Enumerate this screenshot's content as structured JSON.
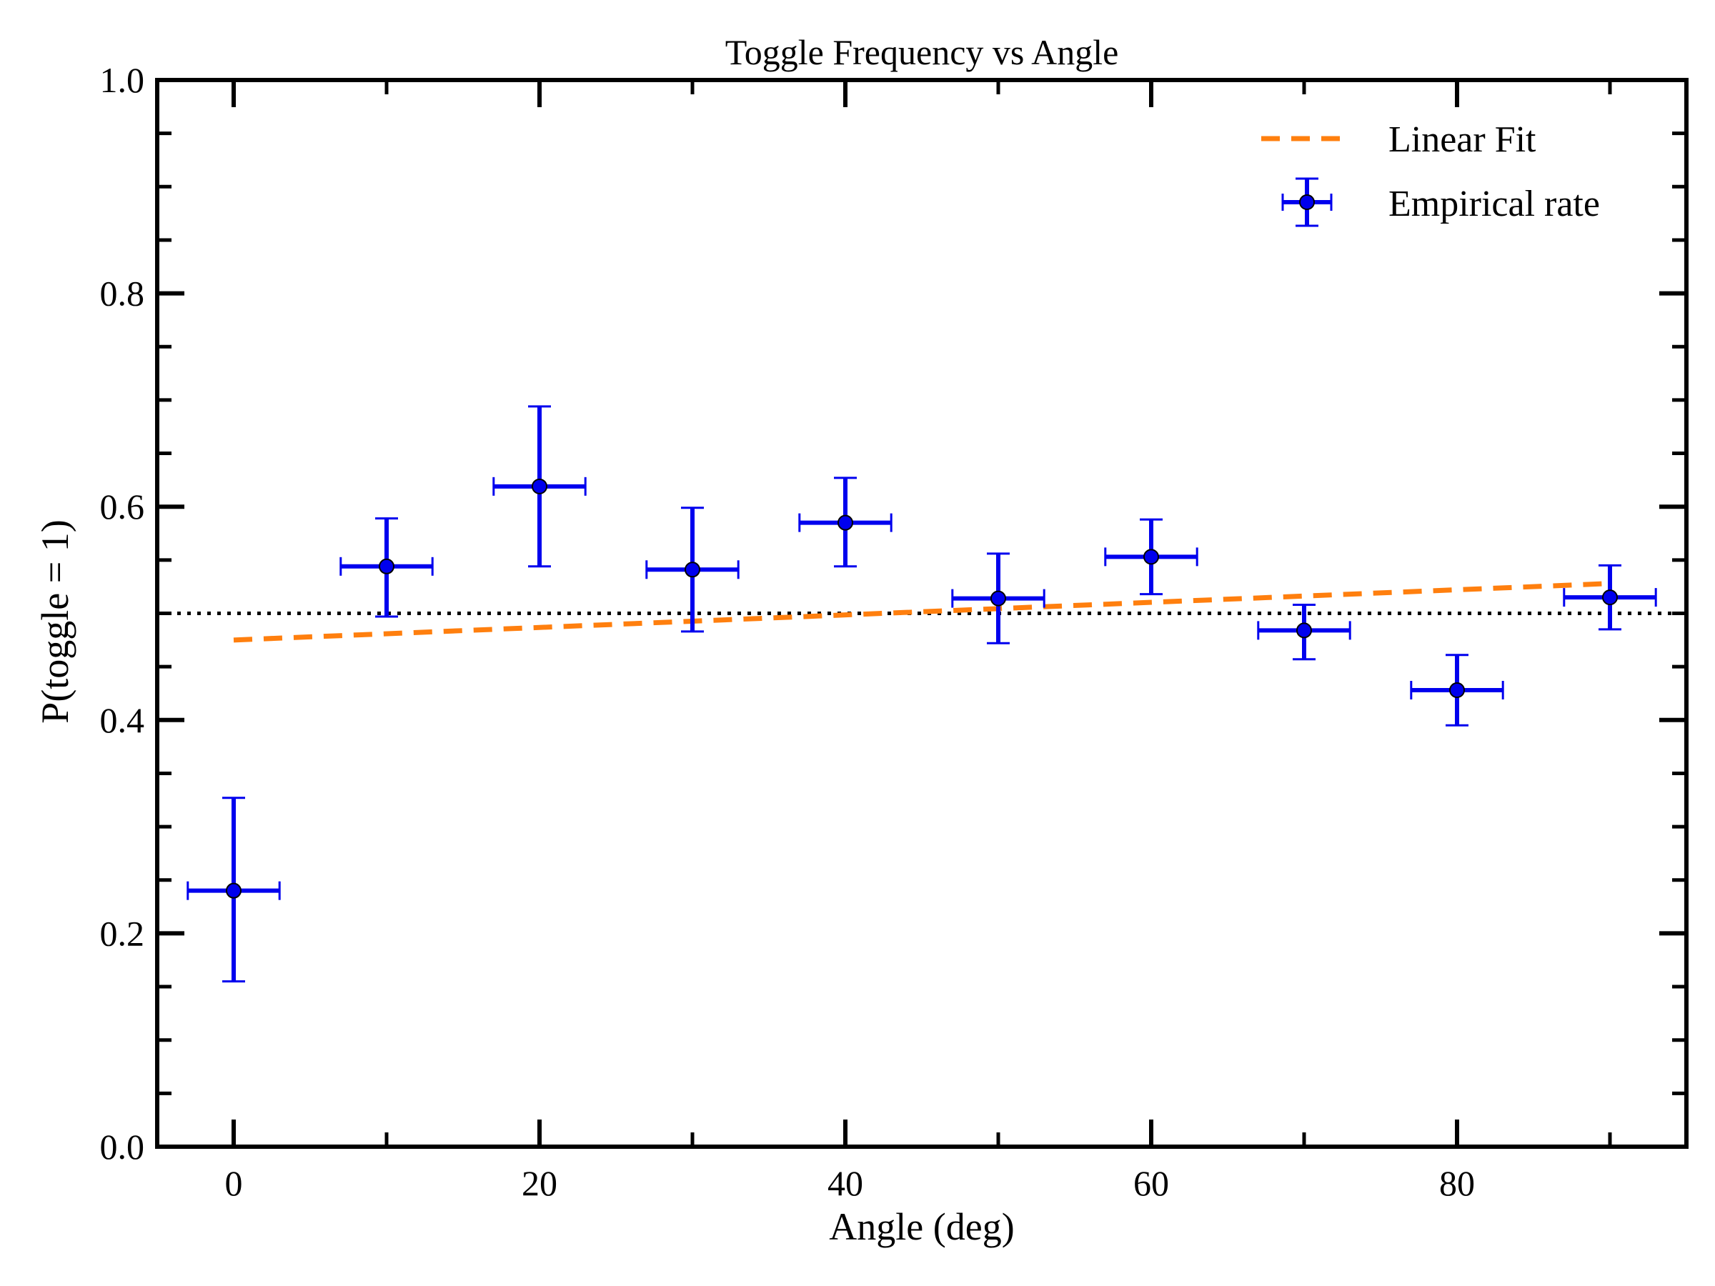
{
  "chart_data": {
    "type": "scatter",
    "title": "Toggle Frequency vs Angle",
    "xlabel": "Angle (deg)",
    "ylabel": "P(toggle = 1)",
    "xlim": [
      -5,
      95
    ],
    "ylim": [
      0.0,
      1.0
    ],
    "x_ticks": [
      0,
      20,
      40,
      60,
      80
    ],
    "x_tick_labels": [
      "0",
      "20",
      "40",
      "60",
      "80"
    ],
    "y_ticks": [
      0.0,
      0.2,
      0.4,
      0.6,
      0.8,
      1.0
    ],
    "y_tick_labels": [
      "0.0",
      "0.2",
      "0.4",
      "0.6",
      "0.8",
      "1.0"
    ],
    "grid": false,
    "legend_position": "top-right",
    "series": [
      {
        "name": "Empirical rate",
        "kind": "errorbar",
        "color": "#0000ee",
        "x": [
          0,
          10,
          20,
          30,
          40,
          50,
          60,
          70,
          80,
          90
        ],
        "y": [
          0.24,
          0.544,
          0.619,
          0.541,
          0.585,
          0.514,
          0.553,
          0.484,
          0.428,
          0.515
        ],
        "yerr_lower": [
          0.085,
          0.047,
          0.075,
          0.058,
          0.041,
          0.042,
          0.035,
          0.027,
          0.033,
          0.03
        ],
        "yerr_upper": [
          0.087,
          0.045,
          0.075,
          0.058,
          0.042,
          0.042,
          0.035,
          0.024,
          0.033,
          0.03
        ],
        "xerr": 3
      },
      {
        "name": "Linear Fit",
        "kind": "line",
        "style": "dashed",
        "color": "#ff7f0e",
        "x": [
          0,
          90
        ],
        "y": [
          0.475,
          0.528
        ]
      }
    ],
    "reference_lines": [
      {
        "kind": "horizontal",
        "y": 0.5,
        "style": "dotted",
        "color": "#000000"
      }
    ]
  }
}
